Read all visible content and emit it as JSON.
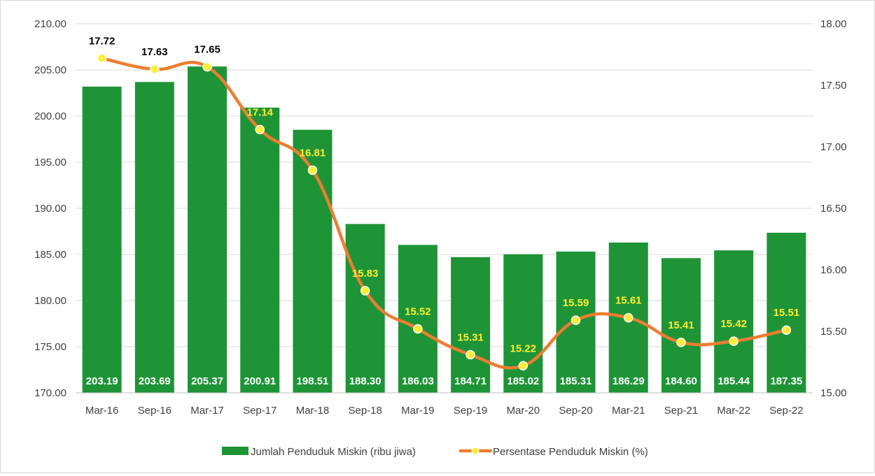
{
  "chart_data": {
    "type": "bar",
    "title": "",
    "categories": [
      "Mar-16",
      "Sep-16",
      "Mar-17",
      "Sep-17",
      "Mar-18",
      "Sep-18",
      "Mar-19",
      "Sep-19",
      "Mar-20",
      "Sep-20",
      "Mar-21",
      "Sep-21",
      "Mar-22",
      "Sep-22"
    ],
    "series": [
      {
        "name": "Jumlah Penduduk Miskin (ribu jiwa)",
        "type": "bar",
        "axis": "left",
        "color": "#1e9437",
        "values": [
          203.19,
          203.69,
          205.37,
          200.91,
          198.51,
          188.3,
          186.03,
          184.71,
          185.02,
          185.31,
          186.29,
          184.6,
          185.44,
          187.35
        ],
        "labels": [
          "203.19",
          "203.69",
          "205.37",
          "200.91",
          "198.51",
          "188.30",
          "186.03",
          "184.71",
          "185.02",
          "185.31",
          "186.29",
          "184.60",
          "185.44",
          "187.35"
        ]
      },
      {
        "name": "Persentase Penduduk Miskin (%)",
        "type": "line",
        "axis": "right",
        "color": "#ed7d31",
        "marker_color": "#ffee33",
        "values": [
          17.72,
          17.63,
          17.65,
          17.14,
          16.81,
          15.83,
          15.52,
          15.31,
          15.22,
          15.59,
          15.61,
          15.41,
          15.42,
          15.51
        ],
        "labels": [
          "17.72",
          "17.63",
          "17.65",
          "17.14",
          "16.81",
          "15.83",
          "15.52",
          "15.31",
          "15.22",
          "15.59",
          "15.61",
          "15.41",
          "15.42",
          "15.51"
        ],
        "label_colors": [
          "#000000",
          "#000000",
          "#000000",
          "#ffee33",
          "#ffee33",
          "#ffee33",
          "#ffee33",
          "#ffee33",
          "#ffee33",
          "#ffee33",
          "#ffee33",
          "#ffee33",
          "#ffee33",
          "#ffee33"
        ]
      }
    ],
    "y_left": {
      "min": 170,
      "max": 210,
      "ticks": [
        "170.00",
        "175.00",
        "180.00",
        "185.00",
        "190.00",
        "195.00",
        "200.00",
        "205.00",
        "210.00"
      ]
    },
    "y_right": {
      "min": 15,
      "max": 18,
      "ticks": [
        "15.00",
        "15.50",
        "16.00",
        "16.50",
        "17.00",
        "17.50",
        "18.00"
      ]
    },
    "grid": true,
    "legend_position": "bottom"
  }
}
